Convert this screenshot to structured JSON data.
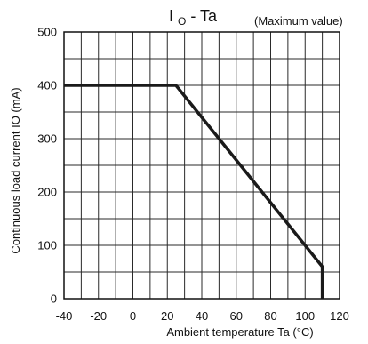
{
  "chart_data": {
    "type": "line",
    "title": {
      "main": "I",
      "subscript": "O",
      "suffix": " - Ta"
    },
    "subtitle": "(Maximum value)",
    "xlabel": "Ambient temperature Ta (°C)",
    "ylabel": "Continuous load current IO (mA)",
    "xlim": [
      -40,
      120
    ],
    "ylim": [
      0,
      500
    ],
    "x_ticks": [
      -40,
      -20,
      0,
      20,
      40,
      60,
      80,
      100,
      120
    ],
    "y_ticks": [
      0,
      100,
      200,
      300,
      400,
      500
    ],
    "x_tick_labels": [
      "-40",
      "-20",
      "0",
      "20",
      "40",
      "60",
      "80",
      "100",
      "120"
    ],
    "y_tick_labels": [
      "0",
      "100",
      "200",
      "300",
      "400",
      "500"
    ],
    "x_minor_step": 10,
    "y_minor_step": 50,
    "grid": true,
    "series": [
      {
        "x": [
          -40,
          25,
          110,
          110
        ],
        "y": [
          400,
          400,
          60,
          0
        ],
        "color": "#1a1a1a"
      }
    ]
  }
}
